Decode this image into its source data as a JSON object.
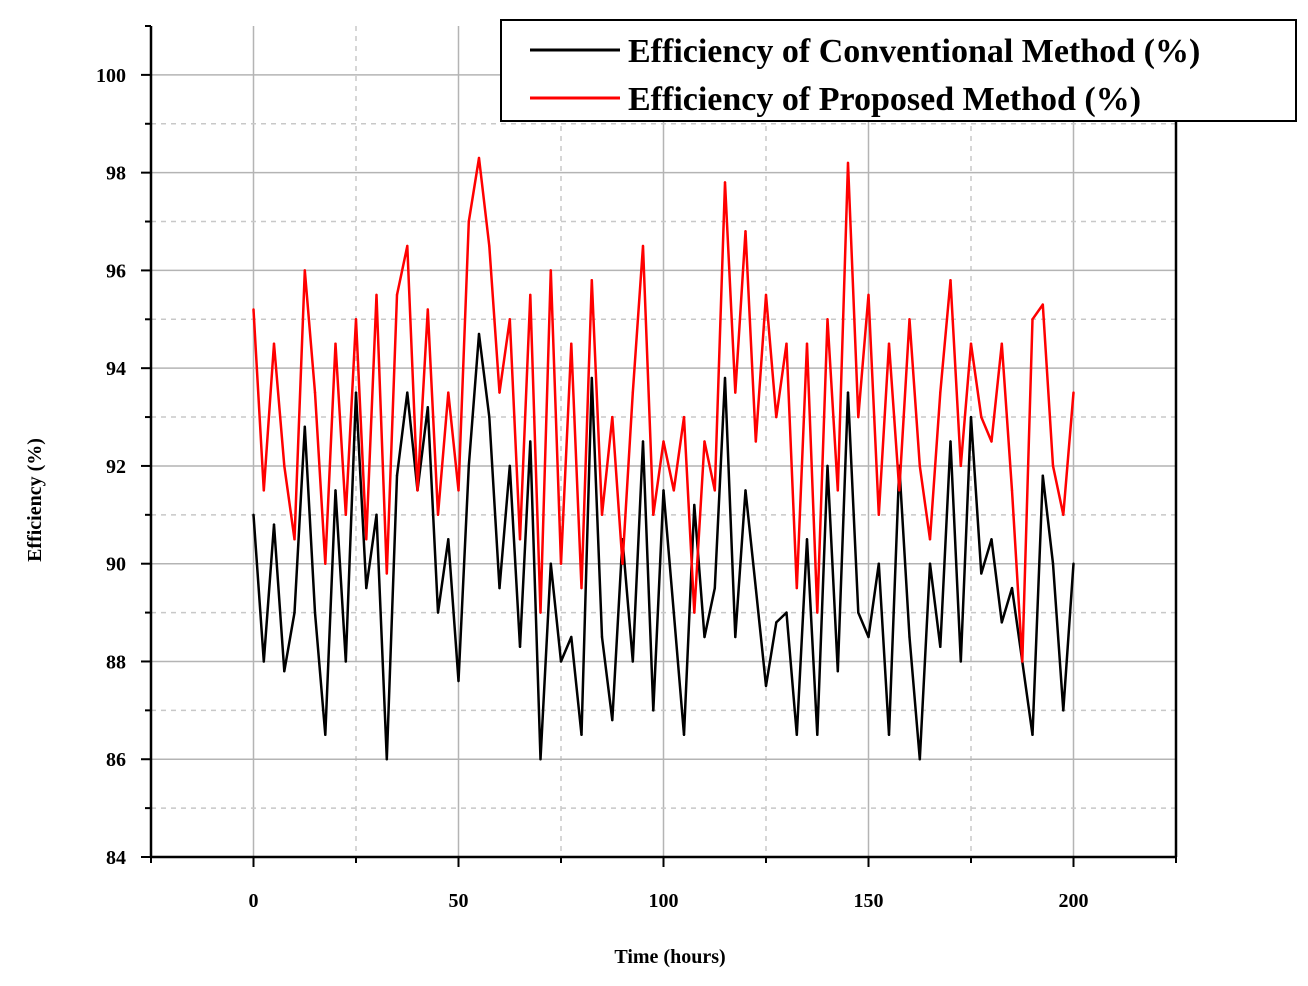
{
  "chart_data": {
    "type": "line",
    "xlabel": "Time (hours)",
    "ylabel": "Efficiency (%)",
    "xlim": [
      -25,
      225
    ],
    "ylim": [
      84,
      101
    ],
    "x_ticks": [
      0,
      50,
      100,
      150,
      200
    ],
    "y_ticks": [
      84,
      86,
      88,
      90,
      92,
      94,
      96,
      98,
      100
    ],
    "grid": true,
    "legend_position": "top-right",
    "x": [
      0,
      2.5,
      5,
      7.5,
      10,
      12.5,
      15,
      17.5,
      20,
      22.5,
      25,
      27.5,
      30,
      32.5,
      35,
      37.5,
      40,
      42.5,
      45,
      47.5,
      50,
      52.5,
      55,
      57.5,
      60,
      62.5,
      65,
      67.5,
      70,
      72.5,
      75,
      77.5,
      80,
      82.5,
      85,
      87.5,
      90,
      92.5,
      95,
      97.5,
      100,
      102.5,
      105,
      107.5,
      110,
      112.5,
      115,
      117.5,
      120,
      122.5,
      125,
      127.5,
      130,
      132.5,
      135,
      137.5,
      140,
      142.5,
      145,
      147.5,
      150,
      152.5,
      155,
      157.5,
      160,
      162.5,
      165,
      167.5,
      170,
      172.5,
      175,
      177.5,
      180,
      182.5,
      185,
      187.5,
      190,
      192.5,
      195,
      197.5,
      200
    ],
    "series": [
      {
        "name": "Efficiency of Conventional Method (%)",
        "color": "#000000",
        "values": [
          91.0,
          88.0,
          90.8,
          87.8,
          89.0,
          92.8,
          89.0,
          86.5,
          91.5,
          88.0,
          93.5,
          89.5,
          91.0,
          86.0,
          91.8,
          93.5,
          91.5,
          93.2,
          89.0,
          90.5,
          87.6,
          92.0,
          94.7,
          93.0,
          89.5,
          92.0,
          88.3,
          92.5,
          86.0,
          90.0,
          88.0,
          88.5,
          86.5,
          93.8,
          88.5,
          86.8,
          90.5,
          88.0,
          92.5,
          87.0,
          91.5,
          89.0,
          86.5,
          91.2,
          88.5,
          89.5,
          93.8,
          88.5,
          91.5,
          89.5,
          87.5,
          88.8,
          89.0,
          86.5,
          90.5,
          86.5,
          92.0,
          87.8,
          93.5,
          89.0,
          88.5,
          90.0,
          86.5,
          92.0,
          88.5,
          86.0,
          90.0,
          88.3,
          92.5,
          88.0,
          93.0,
          89.8,
          90.5,
          88.8,
          89.5,
          88.0,
          86.5,
          91.8,
          90.0,
          87.0,
          90.0
        ]
      },
      {
        "name": "Efficiency of Proposed Method (%)",
        "color": "#ff0000",
        "values": [
          95.2,
          91.5,
          94.5,
          92.0,
          90.5,
          96.0,
          93.5,
          90.0,
          94.5,
          91.0,
          95.0,
          90.5,
          95.5,
          89.8,
          95.5,
          96.5,
          91.5,
          95.2,
          91.0,
          93.5,
          91.5,
          97.0,
          98.3,
          96.5,
          93.5,
          95.0,
          90.5,
          95.5,
          89.0,
          96.0,
          90.0,
          94.5,
          89.5,
          95.8,
          91.0,
          93.0,
          90.0,
          93.5,
          96.5,
          91.0,
          92.5,
          91.5,
          93.0,
          89.0,
          92.5,
          91.5,
          97.8,
          93.5,
          96.8,
          92.5,
          95.5,
          93.0,
          94.5,
          89.5,
          94.5,
          89.0,
          95.0,
          91.5,
          98.2,
          93.0,
          95.5,
          91.0,
          94.5,
          91.5,
          95.0,
          92.0,
          90.5,
          93.5,
          95.8,
          92.0,
          94.5,
          93.0,
          92.5,
          94.5,
          91.5,
          88.0,
          95.0,
          95.3,
          92.0,
          91.0,
          93.5
        ]
      }
    ]
  }
}
